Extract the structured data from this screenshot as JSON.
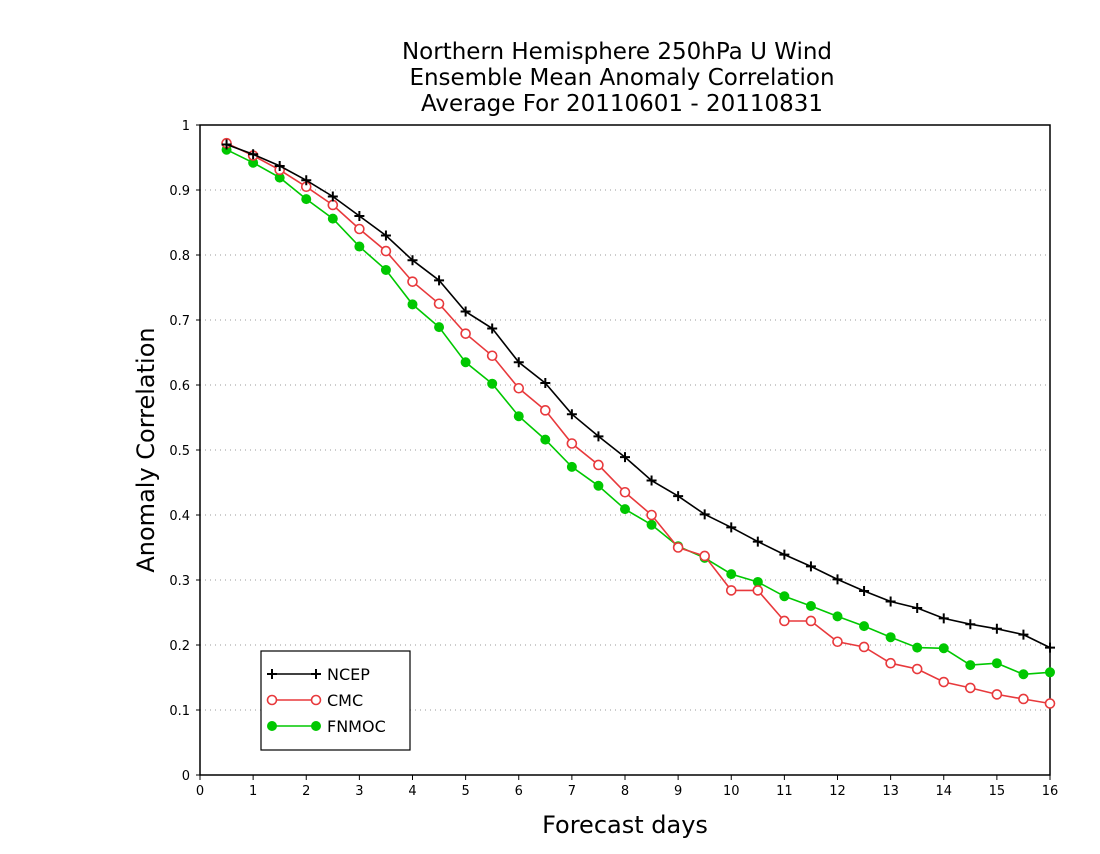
{
  "chart_data": {
    "type": "line",
    "title": [
      "Northern Hemisphere 250hPa U Wind",
      "Ensemble Mean Anomaly Correlation",
      "Average For 20110601 - 20110831"
    ],
    "xlabel": "Forecast days",
    "ylabel": "Anomaly Correlation",
    "xlim": [
      0,
      16
    ],
    "ylim": [
      0,
      1
    ],
    "xticks": [
      0,
      1,
      2,
      3,
      4,
      5,
      6,
      7,
      8,
      9,
      10,
      11,
      12,
      13,
      14,
      15,
      16
    ],
    "xtick_labels": [
      "0",
      "1",
      "2",
      "3",
      "4",
      "5",
      "6",
      "7",
      "8",
      "9",
      "10",
      "11",
      "12",
      "13",
      "14",
      "15",
      "16"
    ],
    "yticks": [
      0,
      0.1,
      0.2,
      0.3,
      0.4,
      0.5,
      0.6,
      0.7,
      0.8,
      0.9,
      1
    ],
    "ytick_labels": [
      "0",
      "0.1",
      "0.2",
      "0.3",
      "0.4",
      "0.5",
      "0.6",
      "0.7",
      "0.8",
      "0.9",
      "1"
    ],
    "grid": "horizontal dotted",
    "legend_position": "bottom-left",
    "x": [
      0.5,
      1,
      1.5,
      2,
      2.5,
      3,
      3.5,
      4,
      4.5,
      5,
      5.5,
      6,
      6.5,
      7,
      7.5,
      8,
      8.5,
      9,
      9.5,
      10,
      10.5,
      11,
      11.5,
      12,
      12.5,
      13,
      13.5,
      14,
      14.5,
      15,
      15.5,
      16
    ],
    "series": [
      {
        "name": "NCEP",
        "color": "#000000",
        "marker": "plus",
        "values": [
          0.97,
          0.955,
          0.937,
          0.915,
          0.89,
          0.86,
          0.83,
          0.792,
          0.761,
          0.713,
          0.687,
          0.635,
          0.603,
          0.555,
          0.521,
          0.489,
          0.453,
          0.429,
          0.401,
          0.381,
          0.359,
          0.339,
          0.321,
          0.301,
          0.283,
          0.267,
          0.257,
          0.241,
          0.232,
          0.225,
          0.216,
          0.196
        ]
      },
      {
        "name": "CMC",
        "color": "#e8393c",
        "marker": "open-circle",
        "values": [
          0.972,
          0.953,
          0.931,
          0.905,
          0.877,
          0.84,
          0.806,
          0.759,
          0.725,
          0.679,
          0.645,
          0.595,
          0.561,
          0.51,
          0.477,
          0.435,
          0.4,
          0.35,
          0.337,
          0.284,
          0.284,
          0.237,
          0.237,
          0.205,
          0.197,
          0.172,
          0.163,
          0.143,
          0.134,
          0.124,
          0.117,
          0.11
        ]
      },
      {
        "name": "FNMOC",
        "color": "#00c800",
        "marker": "filled-circle",
        "values": [
          0.962,
          0.942,
          0.919,
          0.886,
          0.856,
          0.813,
          0.777,
          0.724,
          0.689,
          0.635,
          0.602,
          0.552,
          0.516,
          0.474,
          0.445,
          0.409,
          0.385,
          0.352,
          0.334,
          0.309,
          0.297,
          0.275,
          0.26,
          0.244,
          0.229,
          0.212,
          0.196,
          0.195,
          0.169,
          0.172,
          0.155,
          0.158
        ]
      }
    ]
  }
}
